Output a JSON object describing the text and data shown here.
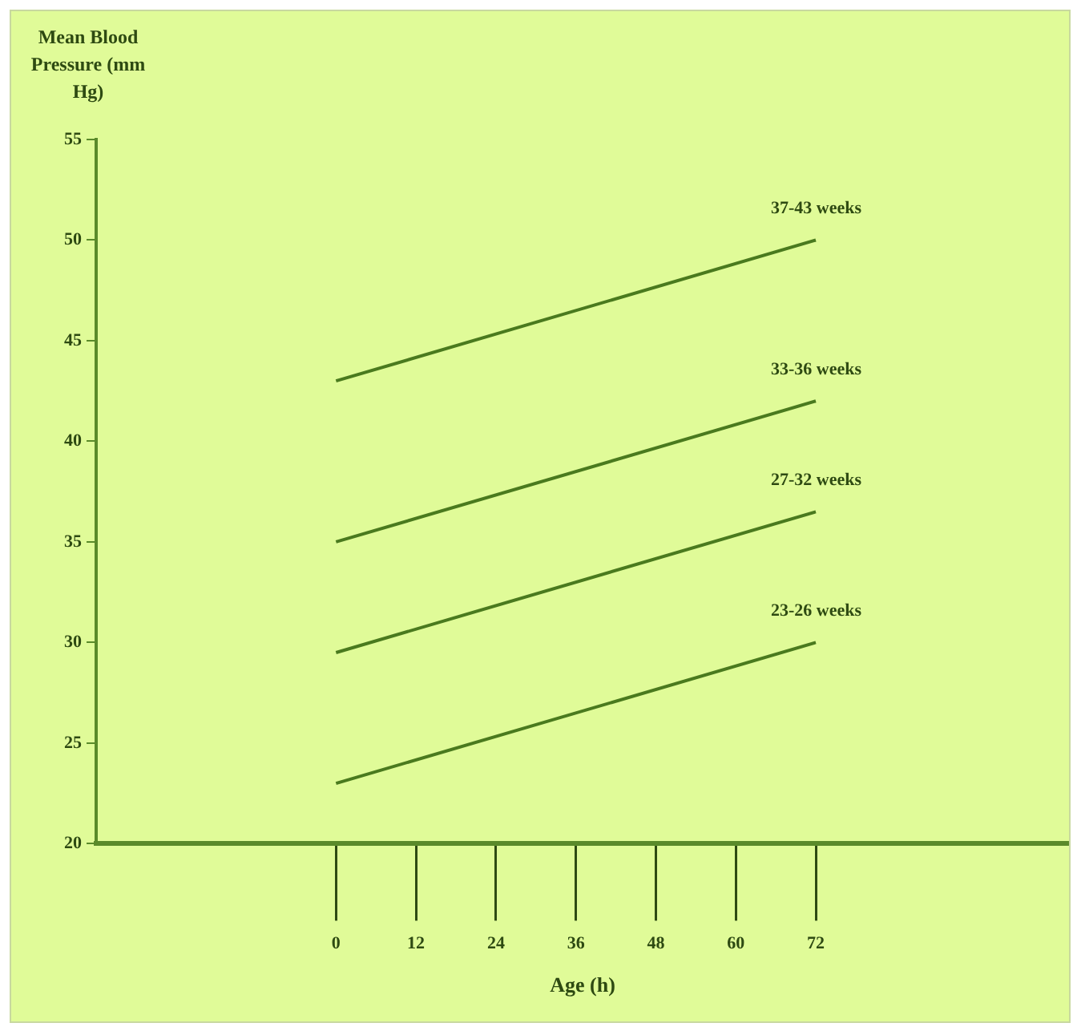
{
  "chart_data": {
    "type": "line",
    "ylabel": "Mean Blood Pressure (mm Hg)",
    "xlabel": "Age (h)",
    "x": [
      0,
      72
    ],
    "series": [
      {
        "name": "37-43 weeks",
        "color": "#4a7a1e",
        "values": [
          43,
          50
        ]
      },
      {
        "name": "33-36 weeks",
        "color": "#4a7a1e",
        "values": [
          35,
          42
        ]
      },
      {
        "name": "27-32 weeks",
        "color": "#4a7a1e",
        "values": [
          29.5,
          36.5
        ]
      },
      {
        "name": "23-26 weeks",
        "color": "#4a7a1e",
        "values": [
          23,
          30
        ]
      }
    ],
    "xlim": [
      -36,
      110
    ],
    "xticks": [
      0,
      12,
      24,
      36,
      48,
      60,
      72
    ],
    "ylim": [
      20,
      55
    ],
    "yticks": [
      20,
      25,
      30,
      35,
      40,
      45,
      50,
      55
    ],
    "grid": false,
    "legend": false,
    "marker": "none",
    "line_style": "solid"
  }
}
